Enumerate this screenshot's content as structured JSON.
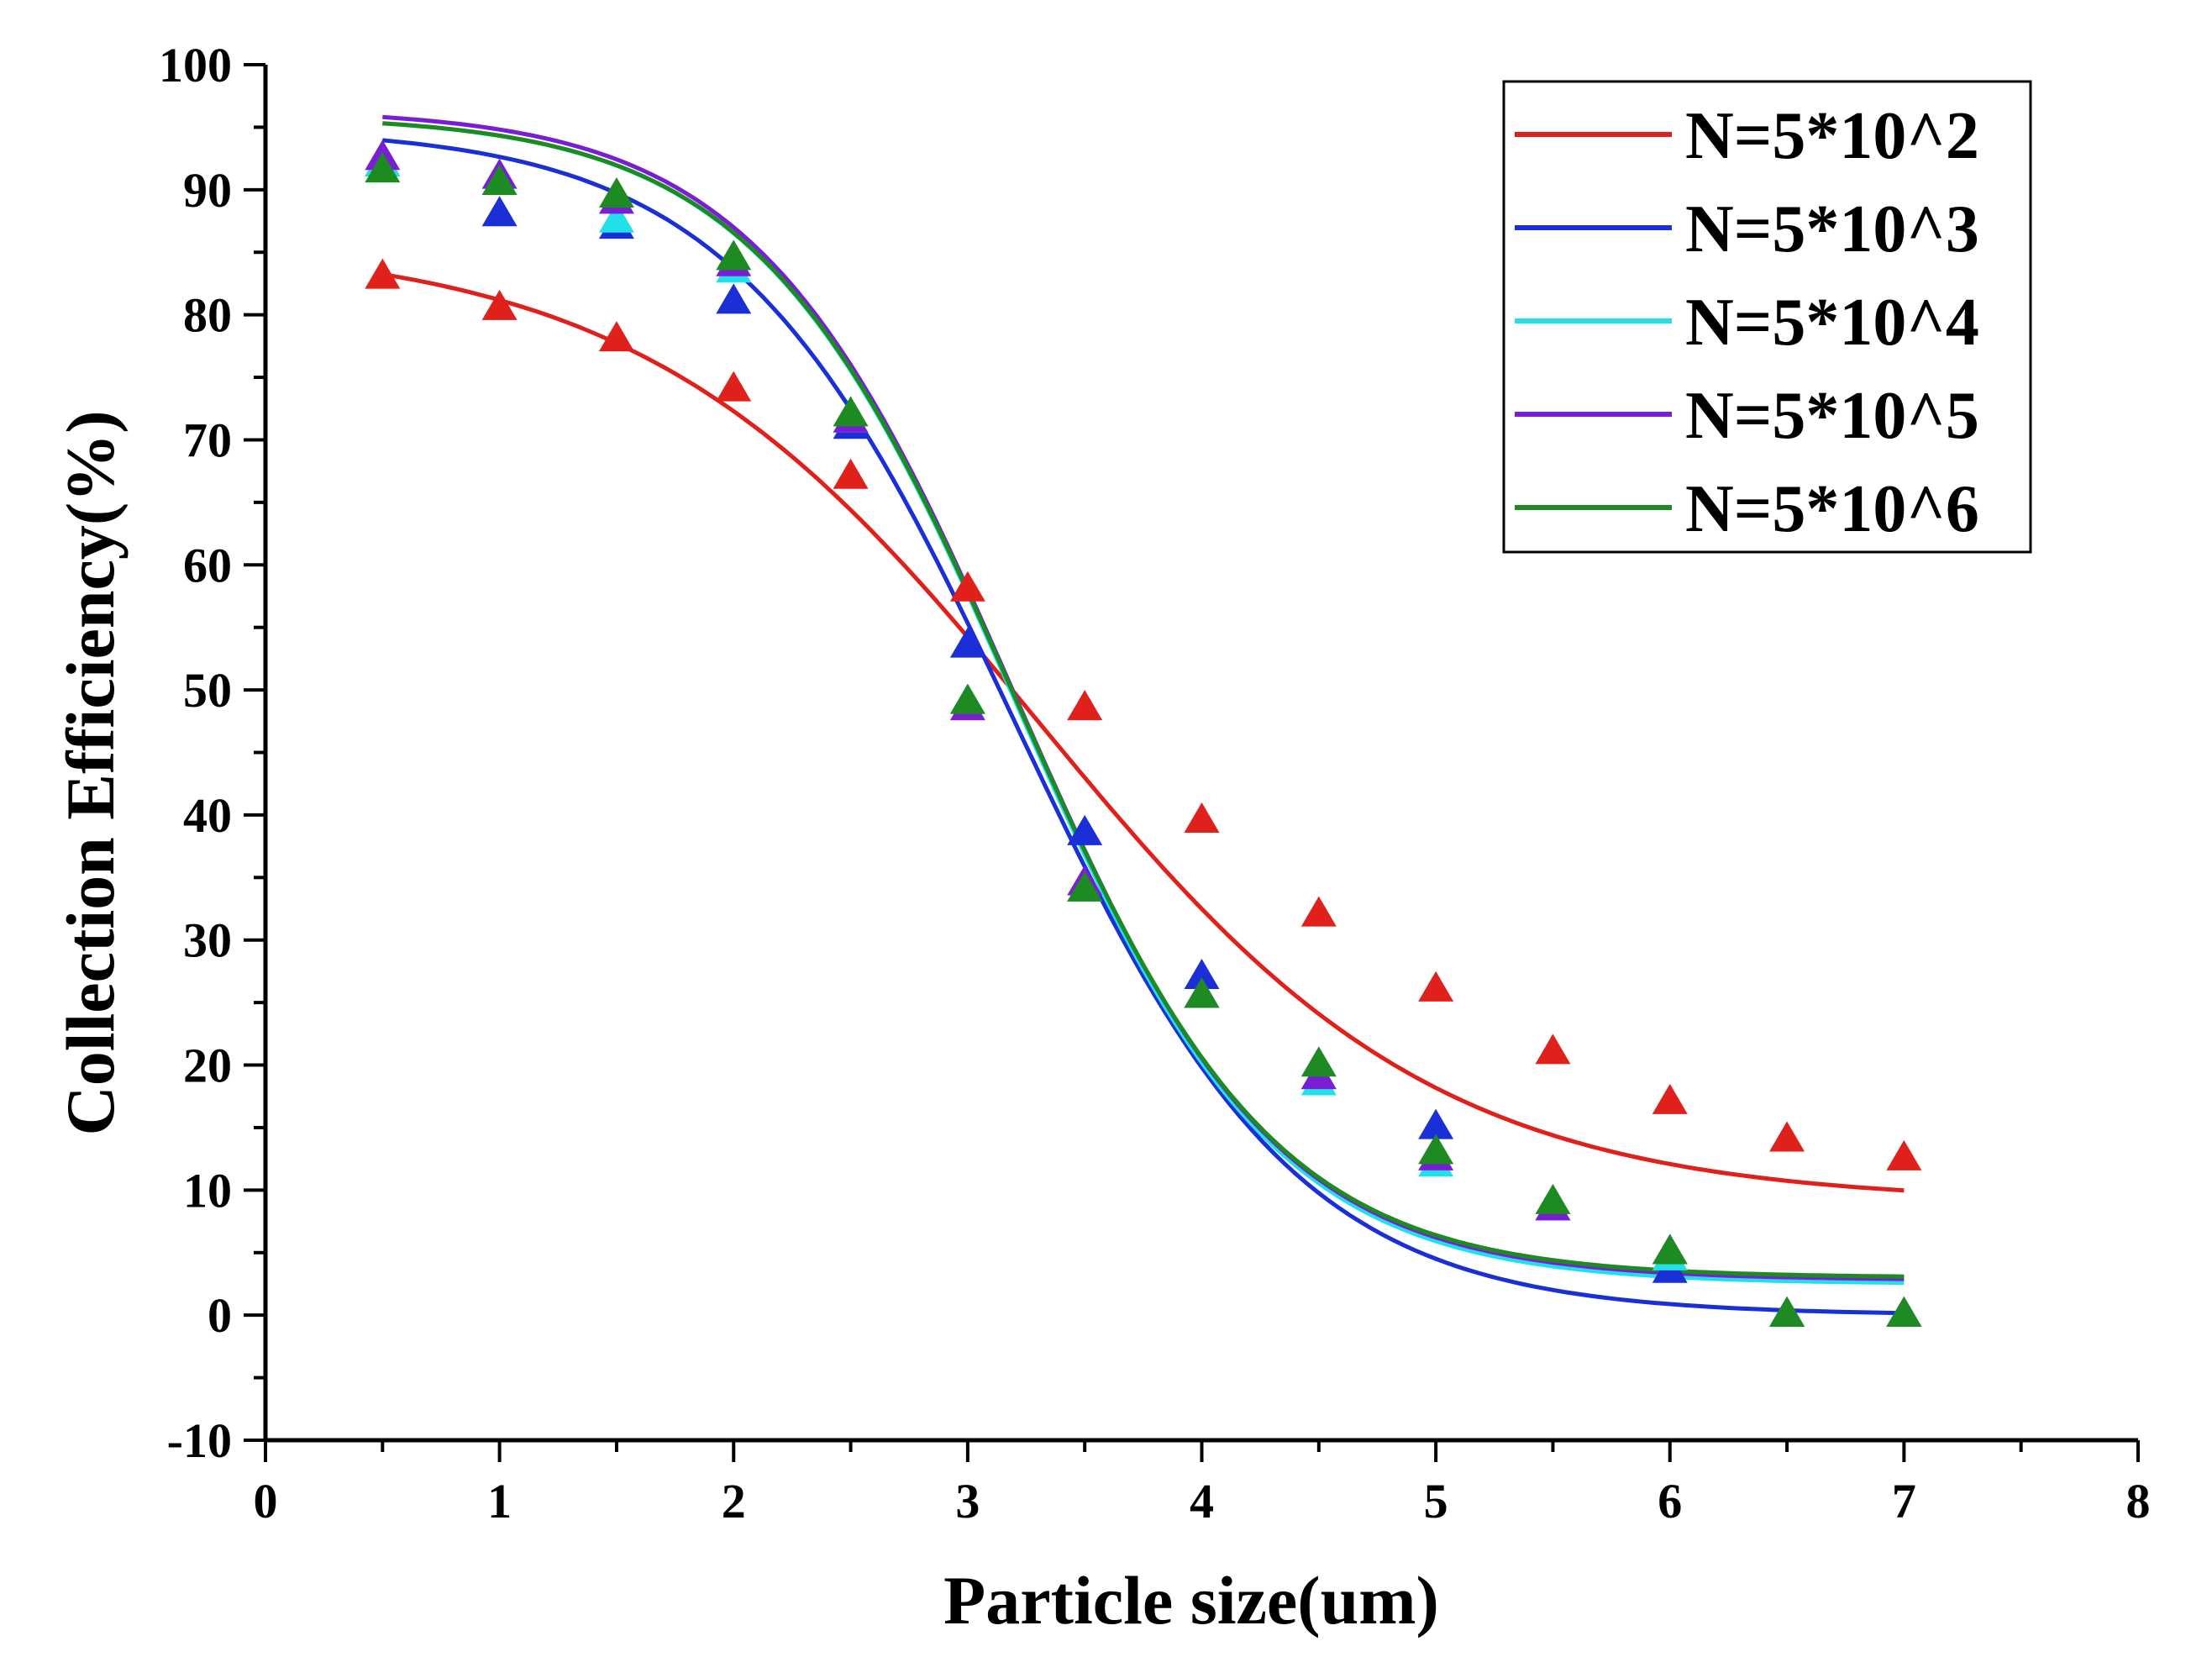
{
  "chart_data": {
    "type": "scatter",
    "title": "",
    "xlabel": "Particle size(um)",
    "ylabel": "Collection Efficiency(%)",
    "xlim": [
      0,
      8
    ],
    "ylim": [
      -10,
      100
    ],
    "xticks": [
      0,
      1,
      2,
      3,
      4,
      5,
      6,
      7,
      8
    ],
    "yticks": [
      -10,
      0,
      10,
      20,
      30,
      40,
      50,
      60,
      70,
      80,
      90,
      100
    ],
    "xtick_labels": [
      "0",
      "1",
      "2",
      "3",
      "4",
      "5",
      "6",
      "7",
      "8"
    ],
    "ytick_labels": [
      "-10",
      "0",
      "10",
      "20",
      "30",
      "40",
      "50",
      "60",
      "70",
      "80",
      "90",
      "100"
    ],
    "grid": false,
    "legend_position": "top-right",
    "marker": "triangle",
    "x": [
      0.5,
      1,
      1.5,
      2,
      2.5,
      3,
      3.5,
      4,
      4.5,
      5,
      5.5,
      6,
      6.5,
      7
    ],
    "series": [
      {
        "name": "N=5*10^2",
        "color": "#e0201b",
        "values": [
          83,
          80.5,
          78,
          74,
          67,
          58,
          48.5,
          39.5,
          32,
          26,
          21,
          17,
          14,
          12.5
        ],
        "fit": {
          "A1": 86,
          "A2": 9,
          "x0": 3.3,
          "dx": 0.85
        }
      },
      {
        "name": "N=5*10^3",
        "color": "#1a2fd6",
        "values": [
          92,
          88,
          87,
          81,
          71,
          53.5,
          38.5,
          27,
          19,
          15,
          8.5,
          3.5,
          0,
          0
        ],
        "fit": {
          "A1": 95,
          "A2": 0,
          "x0": 3.2,
          "dx": 0.6
        }
      },
      {
        "name": "N=5*10^4",
        "color": "#22e0e8",
        "values": [
          92,
          90.5,
          87.5,
          83.5,
          71.5,
          49,
          34,
          25.5,
          18.5,
          12,
          8.5,
          4.5,
          0,
          0
        ],
        "fit": {
          "A1": 96,
          "A2": 2.5,
          "x0": 3.2,
          "dx": 0.55
        }
      },
      {
        "name": "N=5*10^5",
        "color": "#7a1ed6",
        "values": [
          92.5,
          91,
          89,
          84,
          71.5,
          48.5,
          34.5,
          25.5,
          19,
          12.5,
          8.5,
          5,
          0,
          0
        ],
        "fit": {
          "A1": 96.5,
          "A2": 2.8,
          "x0": 3.2,
          "dx": 0.55
        }
      },
      {
        "name": "N=5*10^6",
        "color": "#1e8a22",
        "values": [
          91.5,
          90.5,
          89.5,
          84.5,
          72,
          49,
          34,
          25.5,
          20,
          13,
          9,
          5,
          0,
          0
        ],
        "fit": {
          "A1": 96,
          "A2": 3,
          "x0": 3.2,
          "dx": 0.55
        }
      }
    ]
  }
}
